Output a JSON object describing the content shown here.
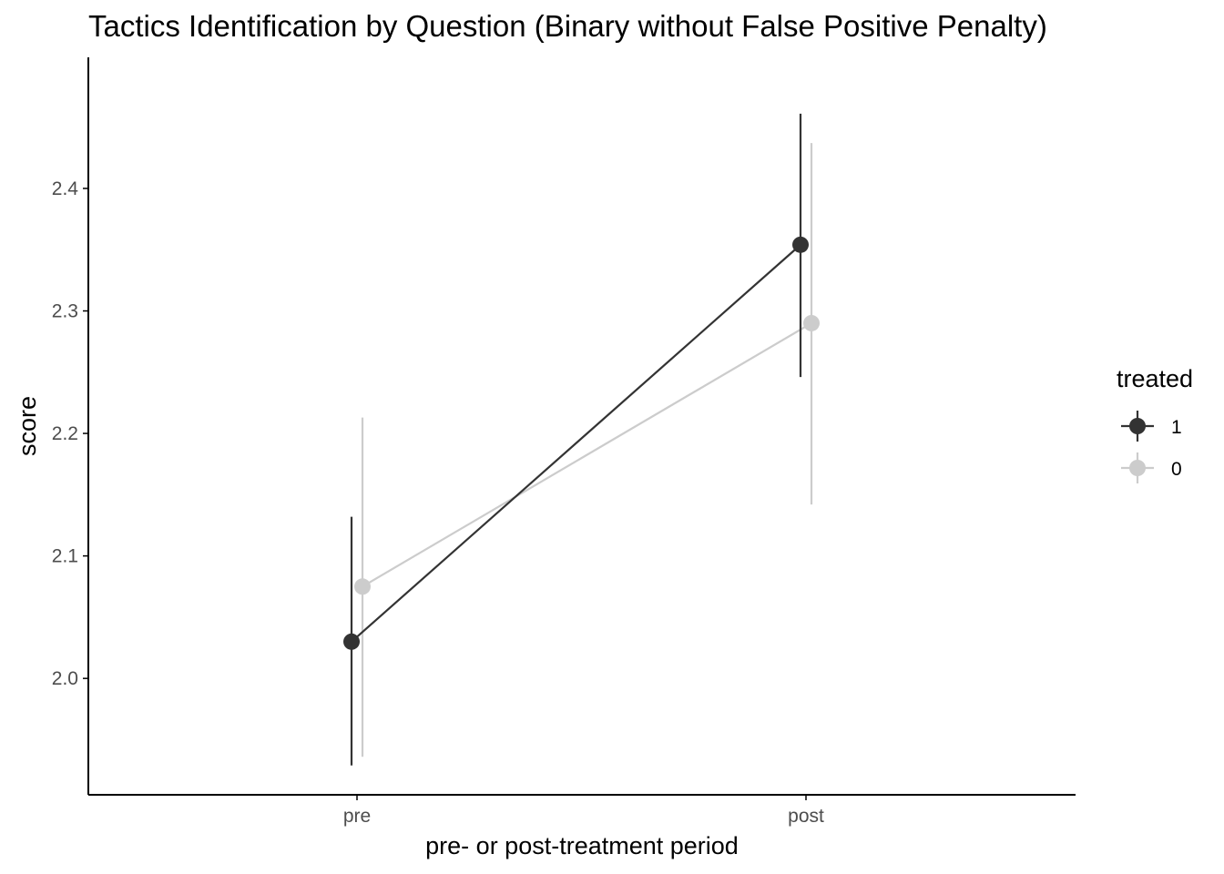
{
  "chart_data": {
    "type": "line",
    "title": "Tactics Identification by Question (Binary without False Positive Penalty)",
    "xlabel": "pre- or post-treatment period",
    "ylabel": "score",
    "categories": [
      "pre",
      "post"
    ],
    "yticks": [
      "2.0",
      "2.1",
      "2.2",
      "2.3",
      "2.4"
    ],
    "ylim": [
      1.905,
      2.507
    ],
    "grid": false,
    "legend": {
      "title": "treated",
      "position": "right"
    },
    "series": [
      {
        "name": "1",
        "color": "#333333",
        "values": [
          2.03,
          2.354
        ],
        "lower": [
          1.929,
          2.246
        ],
        "upper": [
          2.132,
          2.461
        ]
      },
      {
        "name": "0",
        "color": "#cccccc",
        "values": [
          2.075,
          2.29
        ],
        "lower": [
          1.936,
          2.142
        ],
        "upper": [
          2.213,
          2.437
        ]
      }
    ]
  }
}
